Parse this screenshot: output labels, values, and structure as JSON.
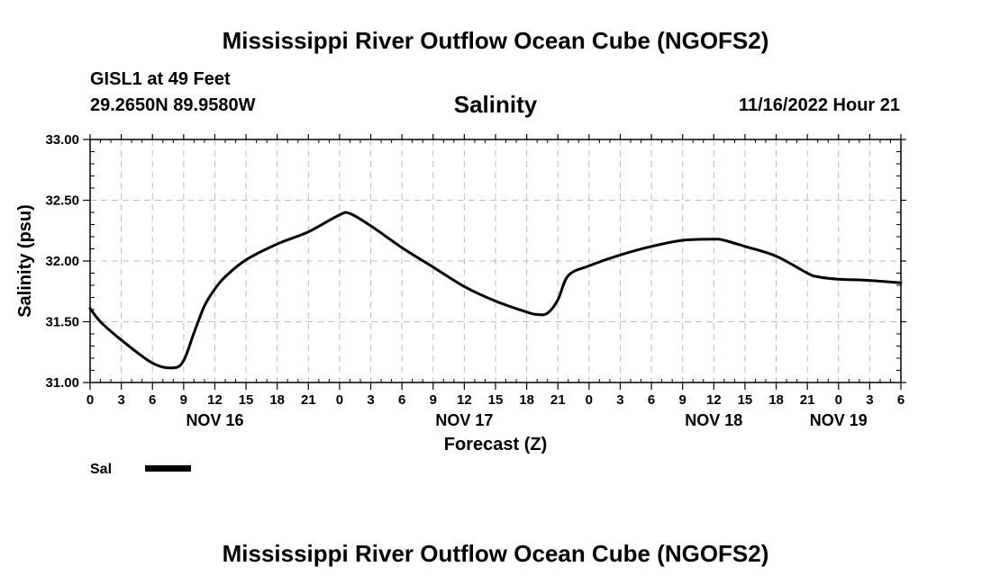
{
  "page": {
    "title_top": "Mississippi River Outflow Ocean Cube (NGOFS2)",
    "title_bottom": "Mississippi River Outflow Ocean Cube (NGOFS2)"
  },
  "station": {
    "name_depth": "GISL1 at 49 Feet",
    "coords": "29.2650N  89.9580W",
    "datetime": "11/16/2022 Hour 21"
  },
  "chart_data": {
    "type": "line",
    "title": "Salinity",
    "xlabel": "Forecast (Z)",
    "ylabel": "Salinity (psu)",
    "ylim": [
      31.0,
      33.0
    ],
    "xlim_hours": [
      0,
      78
    ],
    "x_unit": "hours since 00Z Nov 16",
    "grid": true,
    "yticks": [
      "31.00",
      "31.50",
      "32.00",
      "32.50",
      "33.00"
    ],
    "yticks_values": [
      31.0,
      31.5,
      32.0,
      32.5,
      33.0
    ],
    "xtick_labels": [
      "0",
      "3",
      "6",
      "9",
      "12",
      "15",
      "18",
      "21",
      "0",
      "3",
      "6",
      "9",
      "12",
      "15",
      "18",
      "21",
      "0",
      "3",
      "6",
      "9",
      "12",
      "15",
      "18",
      "21",
      "0",
      "3",
      "6"
    ],
    "date_labels": [
      {
        "label": "NOV 16",
        "hour": 12
      },
      {
        "label": "NOV 17",
        "hour": 36
      },
      {
        "label": "NOV 18",
        "hour": 60
      },
      {
        "label": "NOV 19",
        "hour": 72
      }
    ],
    "legend": [
      {
        "name": "Sal",
        "color": "#000000"
      }
    ],
    "series": [
      {
        "name": "Sal",
        "color": "#000000",
        "x": [
          0,
          1,
          3,
          6,
          8,
          9,
          10,
          11,
          12,
          13,
          15,
          18,
          21,
          24,
          25,
          27,
          30,
          33,
          36,
          39,
          42,
          43,
          44,
          45,
          46,
          48,
          51,
          54,
          57,
          60,
          61,
          63,
          66,
          69,
          70,
          72,
          75,
          78
        ],
        "values": [
          31.61,
          31.5,
          31.35,
          31.16,
          31.12,
          31.18,
          31.41,
          31.63,
          31.77,
          31.87,
          32.01,
          32.14,
          32.24,
          32.38,
          32.39,
          32.29,
          32.11,
          31.95,
          31.79,
          31.67,
          31.58,
          31.56,
          31.57,
          31.68,
          31.88,
          31.96,
          32.05,
          32.12,
          32.17,
          32.18,
          32.17,
          32.12,
          32.04,
          31.9,
          31.87,
          31.85,
          31.84,
          31.82
        ]
      }
    ]
  }
}
